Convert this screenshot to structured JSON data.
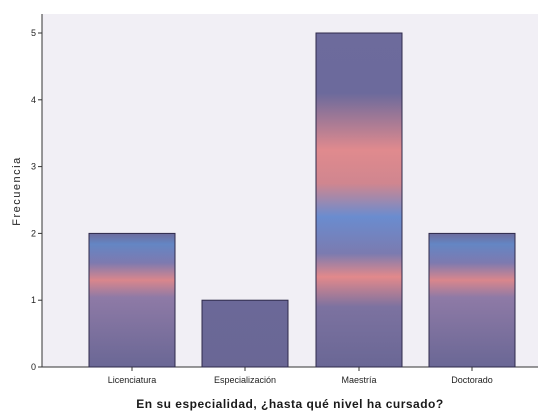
{
  "chart_data": {
    "type": "bar",
    "title": "",
    "xlabel": "En su especialidad, ¿hasta qué nivel ha cursado?",
    "ylabel": "Frecuencia",
    "categories": [
      "Licenciatura",
      "Especialización",
      "Maestría",
      "Doctorado"
    ],
    "values": [
      2,
      1,
      5,
      2
    ],
    "ylim": [
      0,
      5
    ],
    "yticks": [
      "0",
      "1",
      "2",
      "3",
      "4",
      "5"
    ],
    "grid": false,
    "legend": "none"
  },
  "colors": {
    "plot_background": "#f1eff5",
    "bar_fill": "#6f6a98",
    "bar_stroke": "#2e2a4a",
    "highlight_warm": "#e98a8c",
    "highlight_cool": "#6b8fd0"
  }
}
